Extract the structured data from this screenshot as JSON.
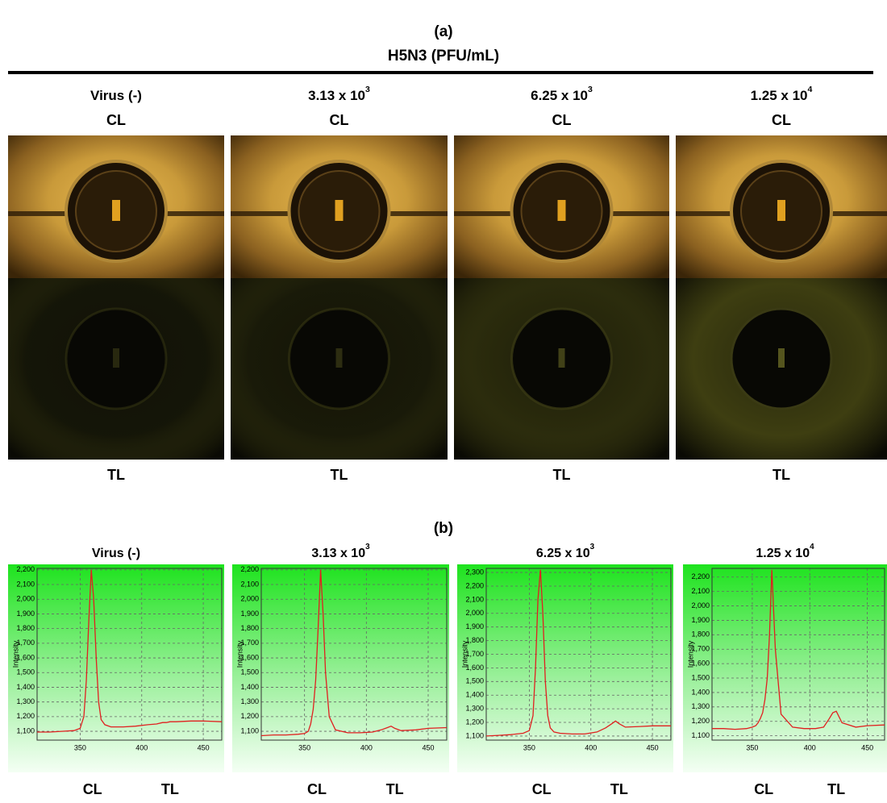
{
  "panel_a": {
    "label": "(a)",
    "title": "H5N3 (PFU/mL)",
    "columns": [
      {
        "header": "Virus (-)",
        "top": "CL",
        "bottom": "TL"
      },
      {
        "header": "3.13 x 10",
        "exponent": "3",
        "top": "CL",
        "bottom": "TL"
      },
      {
        "header": "6.25 x 10",
        "exponent": "3",
        "top": "CL",
        "bottom": "TL"
      },
      {
        "header": "1.25 x 10",
        "exponent": "4",
        "top": "CL",
        "bottom": "TL"
      }
    ]
  },
  "panel_b": {
    "label": "(b)"
  },
  "chart_data": [
    {
      "type": "line",
      "title": "Virus (-)",
      "ylabel": "Intensity",
      "color": "#e02020",
      "x": [
        315,
        325,
        335,
        345,
        350,
        353,
        355,
        357,
        359,
        361,
        363,
        365,
        367,
        370,
        375,
        385,
        395,
        405,
        412,
        417,
        420,
        423,
        428,
        440,
        450,
        465
      ],
      "values": [
        1095,
        1095,
        1100,
        1105,
        1120,
        1200,
        1450,
        1850,
        2200,
        2000,
        1600,
        1300,
        1180,
        1145,
        1130,
        1130,
        1135,
        1145,
        1150,
        1160,
        1160,
        1165,
        1165,
        1170,
        1170,
        1165
      ],
      "xlim": [
        315,
        465
      ],
      "xticks": [
        350,
        400,
        450
      ],
      "ylim": [
        1040,
        2210
      ],
      "yticks": [
        {
          "value": 1100,
          "label": "1,100"
        },
        {
          "value": 1200,
          "label": "1,200"
        },
        {
          "value": 1300,
          "label": "1,300"
        },
        {
          "value": 1400,
          "label": "1,400"
        },
        {
          "value": 1500,
          "label": "1,500"
        },
        {
          "value": 1600,
          "label": "1,600"
        },
        {
          "value": 1700,
          "label": "1,700"
        },
        {
          "value": 1800,
          "label": "1,800"
        },
        {
          "value": 1900,
          "label": "1,900"
        },
        {
          "value": 2000,
          "label": "2,000"
        },
        {
          "value": 2100,
          "label": "2,100"
        },
        {
          "value": 2200,
          "label": "2,200"
        }
      ],
      "grid": true,
      "labels_below": [
        "CL",
        "TL"
      ]
    },
    {
      "type": "line",
      "title": "3.13 x 10",
      "title_exponent": "3",
      "ylabel": "Intensity",
      "color": "#e02020",
      "x": [
        315,
        325,
        335,
        345,
        350,
        353,
        355,
        357,
        359,
        361,
        363,
        365,
        367,
        370,
        375,
        385,
        395,
        405,
        412,
        417,
        420,
        423,
        428,
        440,
        450,
        465
      ],
      "values": [
        1070,
        1075,
        1075,
        1080,
        1085,
        1100,
        1150,
        1250,
        1450,
        1800,
        2200,
        1900,
        1500,
        1200,
        1110,
        1090,
        1090,
        1095,
        1110,
        1125,
        1135,
        1120,
        1105,
        1110,
        1120,
        1125
      ],
      "xlim": [
        315,
        465
      ],
      "xticks": [
        350,
        400,
        450
      ],
      "ylim": [
        1040,
        2210
      ],
      "yticks": [
        {
          "value": 1100,
          "label": "1,100"
        },
        {
          "value": 1200,
          "label": "1,200"
        },
        {
          "value": 1300,
          "label": "1,300"
        },
        {
          "value": 1400,
          "label": "1,400"
        },
        {
          "value": 1500,
          "label": "1,500"
        },
        {
          "value": 1600,
          "label": "1,600"
        },
        {
          "value": 1700,
          "label": "1,700"
        },
        {
          "value": 1800,
          "label": "1,800"
        },
        {
          "value": 1900,
          "label": "1,900"
        },
        {
          "value": 2000,
          "label": "2,000"
        },
        {
          "value": 2100,
          "label": "2,100"
        },
        {
          "value": 2200,
          "label": "2,200"
        }
      ],
      "grid": true,
      "labels_below": [
        "CL",
        "TL"
      ]
    },
    {
      "type": "line",
      "title": "6.25 x 10",
      "title_exponent": "3",
      "ylabel": "Intensity",
      "color": "#e02020",
      "x": [
        315,
        325,
        335,
        345,
        350,
        353,
        355,
        357,
        359,
        361,
        363,
        365,
        367,
        370,
        375,
        385,
        395,
        405,
        412,
        417,
        420,
        423,
        428,
        440,
        450,
        465
      ],
      "values": [
        1100,
        1105,
        1110,
        1120,
        1140,
        1250,
        1600,
        2100,
        2320,
        2000,
        1500,
        1250,
        1160,
        1130,
        1120,
        1115,
        1115,
        1130,
        1160,
        1190,
        1210,
        1190,
        1165,
        1170,
        1175,
        1175
      ],
      "xlim": [
        315,
        465
      ],
      "xticks": [
        350,
        400,
        450
      ],
      "ylim": [
        1070,
        2330
      ],
      "yticks": [
        {
          "value": 1100,
          "label": "1,100"
        },
        {
          "value": 1200,
          "label": "1,200"
        },
        {
          "value": 1300,
          "label": "1,300"
        },
        {
          "value": 1400,
          "label": "1,400"
        },
        {
          "value": 1500,
          "label": "1,500"
        },
        {
          "value": 1600,
          "label": "1,600"
        },
        {
          "value": 1700,
          "label": "1,700"
        },
        {
          "value": 1800,
          "label": "1,800"
        },
        {
          "value": 1900,
          "label": "1,900"
        },
        {
          "value": 2000,
          "label": "2,000"
        },
        {
          "value": 2100,
          "label": "2,100"
        },
        {
          "value": 2200,
          "label": "2,200"
        },
        {
          "value": 2300,
          "label": "2,300"
        }
      ],
      "grid": true,
      "labels_below": [
        "CL",
        "TL"
      ]
    },
    {
      "type": "line",
      "title": "1.25 x 10",
      "title_exponent": "4",
      "ylabel": "Intensity",
      "color": "#e02020",
      "x": [
        315,
        325,
        335,
        345,
        350,
        353,
        355,
        357,
        359,
        361,
        363,
        365,
        367,
        370,
        375,
        385,
        395,
        405,
        412,
        417,
        420,
        423,
        428,
        440,
        450,
        465
      ],
      "values": [
        1150,
        1150,
        1145,
        1150,
        1160,
        1170,
        1190,
        1220,
        1260,
        1350,
        1500,
        1800,
        2250,
        1700,
        1250,
        1160,
        1150,
        1150,
        1160,
        1220,
        1260,
        1270,
        1190,
        1160,
        1170,
        1175
      ],
      "xlim": [
        315,
        465
      ],
      "xticks": [
        350,
        400,
        450
      ],
      "ylim": [
        1070,
        2260
      ],
      "yticks": [
        {
          "value": 1100,
          "label": "1,100"
        },
        {
          "value": 1200,
          "label": "1,200"
        },
        {
          "value": 1300,
          "label": "1,300"
        },
        {
          "value": 1400,
          "label": "1,400"
        },
        {
          "value": 1500,
          "label": "1,500"
        },
        {
          "value": 1600,
          "label": "1,600"
        },
        {
          "value": 1700,
          "label": "1,700"
        },
        {
          "value": 1800,
          "label": "1,800"
        },
        {
          "value": 1900,
          "label": "1,900"
        },
        {
          "value": 2000,
          "label": "2,000"
        },
        {
          "value": 2100,
          "label": "2,100"
        },
        {
          "value": 2200,
          "label": "2,200"
        }
      ],
      "grid": true,
      "labels_below": [
        "CL",
        "TL"
      ]
    }
  ]
}
